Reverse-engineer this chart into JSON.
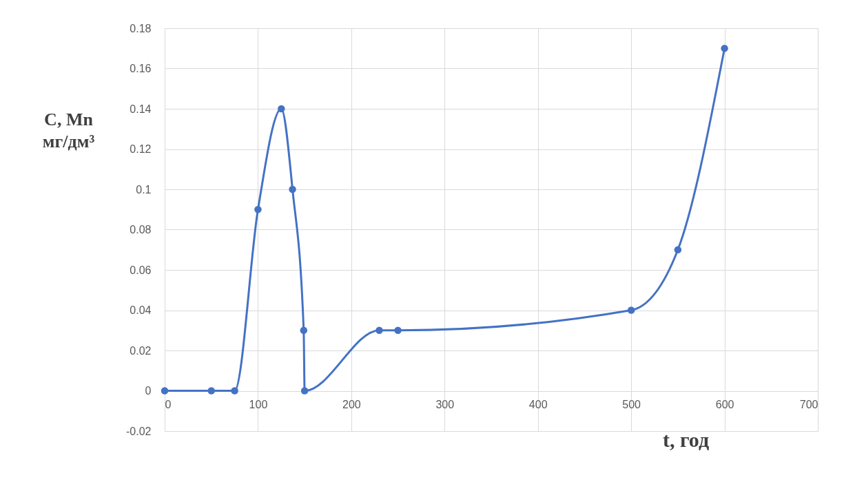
{
  "chart_data": {
    "type": "line",
    "xlabel": "t, год",
    "ylabel": "C, Mn\nмг/дм³",
    "x": [
      0,
      50,
      75,
      100,
      125,
      137,
      149,
      150,
      230,
      250,
      500,
      550,
      600
    ],
    "series": [
      {
        "color": "#4472c4",
        "values": [
          0,
          0,
          0,
          0.09,
          0.14,
          0.1,
          0.03,
          0,
          0.03,
          0.03,
          0.04,
          0.07,
          0.17
        ]
      }
    ],
    "xlim": [
      0,
      700
    ],
    "xticks": [
      0,
      100,
      200,
      300,
      400,
      500,
      600,
      700
    ],
    "ylim": [
      -0.02,
      0.18
    ],
    "yticks": [
      {
        "value": -0.02,
        "label": "-0.02"
      },
      0,
      0.02,
      0.04,
      0.06,
      0.08,
      0.1,
      0.12,
      0.14,
      0.16,
      0.18
    ],
    "grid": true,
    "marker": "circle",
    "line_style": "solid"
  }
}
